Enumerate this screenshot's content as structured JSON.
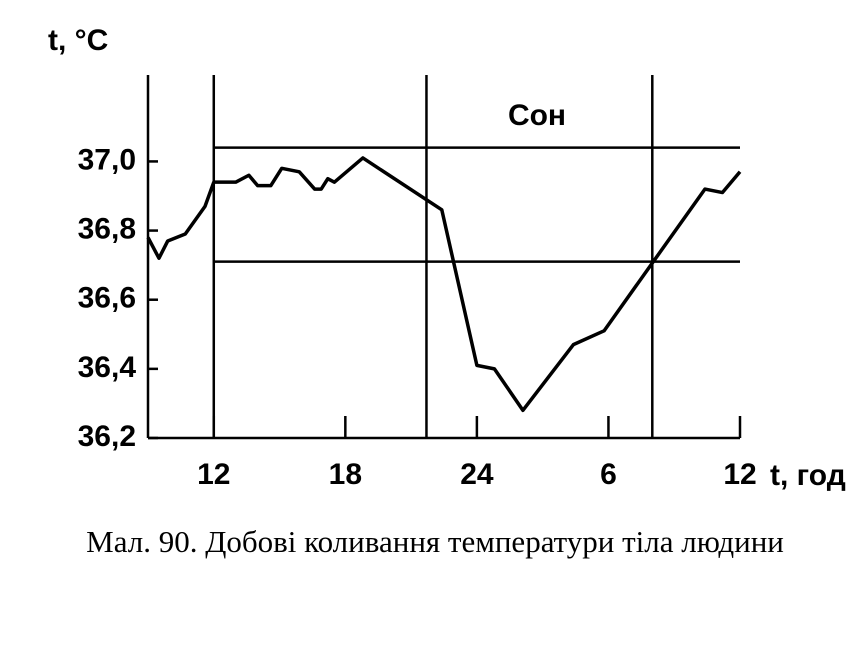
{
  "chart_data": {
    "type": "line",
    "y_label": "t, °C",
    "x_label": "t, год",
    "annotation": "Сон",
    "caption": "Мал. 90. Добові коливання температури тіла людини",
    "x": [
      9,
      9.5,
      9.9,
      10.7,
      11.6,
      12,
      13,
      13.6,
      14,
      14.6,
      15.1,
      15.9,
      16.6,
      16.9,
      17.2,
      17.5,
      18.8,
      22.4,
      24,
      24.8,
      26.1,
      28.4,
      29.8,
      34.4,
      35.2,
      36
    ],
    "series": [
      {
        "color": "#000000",
        "values": [
          36.78,
          36.72,
          36.77,
          36.79,
          36.87,
          36.94,
          36.94,
          36.96,
          36.93,
          36.93,
          36.98,
          36.97,
          36.92,
          36.92,
          36.95,
          36.94,
          37.01,
          36.86,
          36.41,
          36.4,
          36.28,
          36.47,
          36.51,
          36.92,
          36.91,
          36.97
        ]
      }
    ],
    "xlim": [
      9,
      36
    ],
    "ylim": [
      36.2,
      37.25
    ],
    "xticks": [
      12,
      18,
      24,
      {
        "value": 30,
        "label": "6"
      },
      {
        "value": 36,
        "label": "12"
      }
    ],
    "yticks": [
      {
        "value": 36.2,
        "label": "36,2"
      },
      {
        "value": 36.4,
        "label": "36,4"
      },
      {
        "value": 36.6,
        "label": "36,6"
      },
      {
        "value": 36.8,
        "label": "36,8"
      },
      {
        "value": 37,
        "label": "37,0"
      }
    ],
    "vlines": [
      12,
      21.7,
      32
    ],
    "hlines": [
      37.04,
      36.71
    ]
  }
}
